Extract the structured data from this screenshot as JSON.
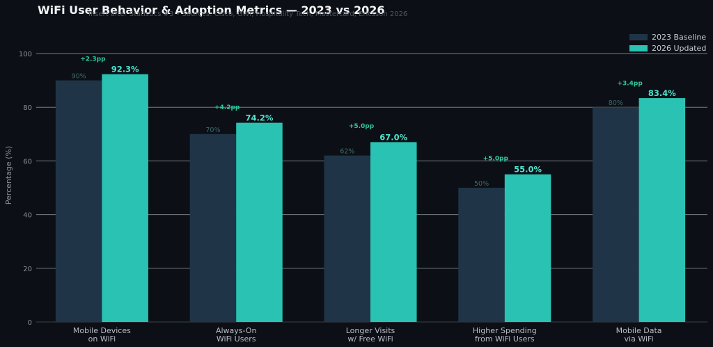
{
  "title": "WiFi User Behavior & Adoption Metrics — 2023 vs 2026",
  "subtitle": "Insert after Statistics #3 • Sources: Cisco, GWI, Hospitality Tech, Mastercard, Ericsson 2026",
  "colors": {
    "background": "#0c1016",
    "baseline": "#1f3547",
    "updated": "#2ac3b3",
    "delta": "#2fc89a",
    "grid": "#9ca2a8",
    "tick": "#8a9098"
  },
  "chart_data": {
    "type": "bar",
    "title": "WiFi User Behavior & Adoption Metrics — 2023 vs 2026",
    "subtitle": "Insert after Statistics #3 • Sources: Cisco, GWI, Hospitality Tech, Mastercard, Ericsson 2026",
    "xlabel": "",
    "ylabel": "Percentage (%)",
    "ylim": [
      0,
      100
    ],
    "yticks": [
      0,
      20,
      40,
      60,
      80,
      100
    ],
    "grid": true,
    "legend_position": "top-right",
    "categories": [
      [
        "Mobile Devices",
        "on WiFi"
      ],
      [
        "Always-On",
        "WiFi Users"
      ],
      [
        "Longer Visits",
        "w/ Free WiFi"
      ],
      [
        "Higher Spending",
        "from WiFi Users"
      ],
      [
        "Mobile Data",
        "via WiFi"
      ]
    ],
    "series": [
      {
        "name": "2023 Baseline",
        "values": [
          90,
          70,
          62,
          50,
          80
        ],
        "labels": [
          "90%",
          "70%",
          "62%",
          "50%",
          "80%"
        ]
      },
      {
        "name": "2026 Updated",
        "values": [
          92.3,
          74.2,
          67.0,
          55.0,
          83.4
        ],
        "labels": [
          "92.3%",
          "74.2%",
          "67.0%",
          "55.0%",
          "83.4%"
        ]
      }
    ],
    "annotations": [
      {
        "text": "+2.3pp",
        "y": 98
      },
      {
        "text": "+4.2pp",
        "y": 80
      },
      {
        "text": "+5.0pp",
        "y": 73
      },
      {
        "text": "+5.0pp",
        "y": 61
      },
      {
        "text": "+3.4pp",
        "y": 89
      }
    ]
  }
}
